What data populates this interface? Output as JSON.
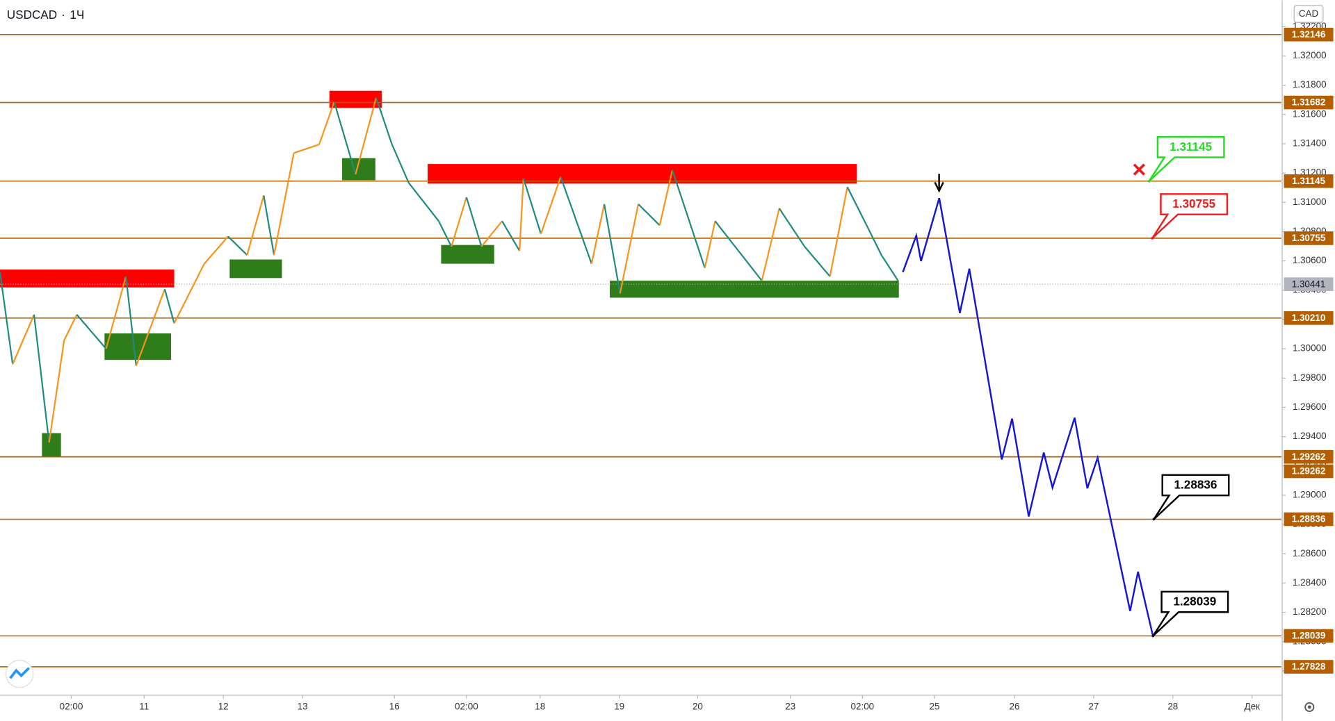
{
  "header": {
    "symbol": "USDCAD",
    "interval": "1Ч",
    "currency": "CAD"
  },
  "chart_data": {
    "type": "price-projection",
    "xlim": [
      0,
      16.18
    ],
    "ylim": [
      1.2764,
      1.3238
    ],
    "xticks": [
      {
        "value": 0.9,
        "label": "02:00"
      },
      {
        "value": 1.82,
        "label": "11"
      },
      {
        "value": 2.82,
        "label": "12"
      },
      {
        "value": 3.82,
        "label": "13"
      },
      {
        "value": 4.98,
        "label": "16"
      },
      {
        "value": 5.89,
        "label": "02:00"
      },
      {
        "value": 6.82,
        "label": "18"
      },
      {
        "value": 7.82,
        "label": "19"
      },
      {
        "value": 8.81,
        "label": "20"
      },
      {
        "value": 9.98,
        "label": "23"
      },
      {
        "value": 10.89,
        "label": "02:00"
      },
      {
        "value": 11.8,
        "label": "25"
      },
      {
        "value": 12.81,
        "label": "26"
      },
      {
        "value": 13.81,
        "label": "27"
      },
      {
        "value": 14.81,
        "label": "28"
      },
      {
        "value": 15.81,
        "label": "Дек"
      }
    ],
    "yticks": [
      {
        "value": 1.278,
        "label": "1.27800"
      },
      {
        "value": 1.28,
        "label": "1.28000"
      },
      {
        "value": 1.282,
        "label": "1.28200"
      },
      {
        "value": 1.284,
        "label": "1.28400"
      },
      {
        "value": 1.286,
        "label": "1.28600"
      },
      {
        "value": 1.288,
        "label": "1.28800"
      },
      {
        "value": 1.29,
        "label": "1.29000"
      },
      {
        "value": 1.292,
        "label": "1.29200"
      },
      {
        "value": 1.294,
        "label": "1.29400"
      },
      {
        "value": 1.296,
        "label": "1.29600"
      },
      {
        "value": 1.298,
        "label": "1.29800"
      },
      {
        "value": 1.3,
        "label": "1.30000"
      },
      {
        "value": 1.302,
        "label": "1.30200"
      },
      {
        "value": 1.304,
        "label": "1.30400"
      },
      {
        "value": 1.306,
        "label": "1.30600"
      },
      {
        "value": 1.308,
        "label": "1.30800"
      },
      {
        "value": 1.31,
        "label": "1.31000"
      },
      {
        "value": 1.312,
        "label": "1.31200"
      },
      {
        "value": 1.314,
        "label": "1.31400"
      },
      {
        "value": 1.316,
        "label": "1.31600"
      },
      {
        "value": 1.318,
        "label": "1.31800"
      },
      {
        "value": 1.32,
        "label": "1.32000"
      },
      {
        "value": 1.322,
        "label": "1.32200"
      }
    ],
    "levels": {
      "color": "#b35f00",
      "values": [
        {
          "value": 1.32146,
          "label": "1.32146"
        },
        {
          "value": 1.31682,
          "label": "1.31682"
        },
        {
          "value": 1.31145,
          "label": "1.31145"
        },
        {
          "value": 1.30755,
          "label": "1.30755"
        },
        {
          "value": 1.3021,
          "label": "1.30210"
        },
        {
          "value": 1.29262,
          "label": "1.29262"
        },
        {
          "value": 1.29262,
          "label": "1.29262"
        },
        {
          "value": 1.28836,
          "label": "1.28836"
        },
        {
          "value": 1.28039,
          "label": "1.28039"
        },
        {
          "value": 1.27828,
          "label": "1.27828"
        }
      ]
    },
    "last_price": 1.30441,
    "zones": [
      {
        "color": "#ff0000",
        "x": [
          0,
          2.2
        ],
        "y": [
          1.30541,
          1.30419
        ]
      },
      {
        "color": "#ff0000",
        "x": [
          4.16,
          4.82
        ],
        "y": [
          1.31762,
          1.31645
        ]
      },
      {
        "color": "#ff0000",
        "x": [
          5.4,
          10.82
        ],
        "y": [
          1.31262,
          1.31128
        ]
      },
      {
        "color": "#2e7d1a",
        "x": [
          0.53,
          0.77
        ],
        "y": [
          1.29424,
          1.29262
        ]
      },
      {
        "color": "#2e7d1a",
        "x": [
          1.32,
          2.16
        ],
        "y": [
          1.30105,
          1.29924
        ]
      },
      {
        "color": "#2e7d1a",
        "x": [
          2.9,
          3.56
        ],
        "y": [
          1.3061,
          1.30483
        ]
      },
      {
        "color": "#2e7d1a",
        "x": [
          4.32,
          4.74
        ],
        "y": [
          1.31302,
          1.31151
        ]
      },
      {
        "color": "#2e7d1a",
        "x": [
          5.57,
          6.24
        ],
        "y": [
          1.30709,
          1.30581
        ]
      },
      {
        "color": "#2e7d1a",
        "x": [
          7.7,
          11.35
        ],
        "y": [
          1.30465,
          1.30349
        ]
      }
    ],
    "price": {
      "up_color": "#f7931a",
      "down_color": "#1f8a80",
      "x": [
        0,
        0.16,
        0.43,
        0.62,
        0.81,
        0.97,
        1.34,
        1.59,
        1.72,
        2.08,
        2.2,
        2.58,
        2.88,
        3.12,
        3.33,
        3.46,
        3.71,
        4.03,
        4.22,
        4.49,
        4.75,
        4.95,
        5.16,
        5.54,
        5.7,
        5.89,
        6.08,
        6.34,
        6.56,
        6.61,
        6.83,
        7.08,
        7.47,
        7.63,
        7.83,
        8.06,
        8.33,
        8.49,
        8.9,
        9.03,
        9.62,
        9.84,
        10.16,
        10.48,
        10.7,
        10.97,
        11.13,
        11.34
      ],
      "values": [
        1.30523,
        1.29895,
        1.30233,
        1.2936,
        1.30058,
        1.30233,
        1.3,
        1.30494,
        1.29884,
        1.30407,
        1.30174,
        1.30581,
        1.30767,
        1.3064,
        1.31047,
        1.3064,
        1.31337,
        1.31395,
        1.31686,
        1.31192,
        1.31715,
        1.31395,
        1.31134,
        1.30872,
        1.30698,
        1.31035,
        1.30698,
        1.30872,
        1.30669,
        1.31163,
        1.30785,
        1.31174,
        1.30581,
        1.30988,
        1.30378,
        1.30988,
        1.30843,
        1.31221,
        1.30552,
        1.30872,
        1.30465,
        1.30959,
        1.30698,
        1.30494,
        1.31105,
        1.30814,
        1.3064,
        1.30465
      ]
    },
    "projection": {
      "color": "#1515d4",
      "x": [
        11.4,
        11.57,
        11.63,
        11.86,
        12.12,
        12.24,
        12.65,
        12.78,
        12.99,
        13.18,
        13.29,
        13.57,
        13.73,
        13.86,
        14.27,
        14.37,
        14.56
      ],
      "values": [
        1.30523,
        1.30773,
        1.30599,
        1.31029,
        1.30244,
        1.30547,
        1.29244,
        1.29523,
        1.28855,
        1.29291,
        1.29052,
        1.29529,
        1.29047,
        1.29256,
        1.28209,
        1.28477,
        1.28035
      ]
    },
    "callouts": [
      {
        "x": 14.51,
        "value": 1.31145,
        "color": "#22dd22"
      },
      {
        "x": 14.55,
        "value": 1.30755,
        "color": "#ee1c1c"
      },
      {
        "x": 14.57,
        "value": 1.28836,
        "color": "#000000"
      },
      {
        "x": 14.56,
        "value": 1.28039,
        "color": "#000000"
      }
    ]
  }
}
